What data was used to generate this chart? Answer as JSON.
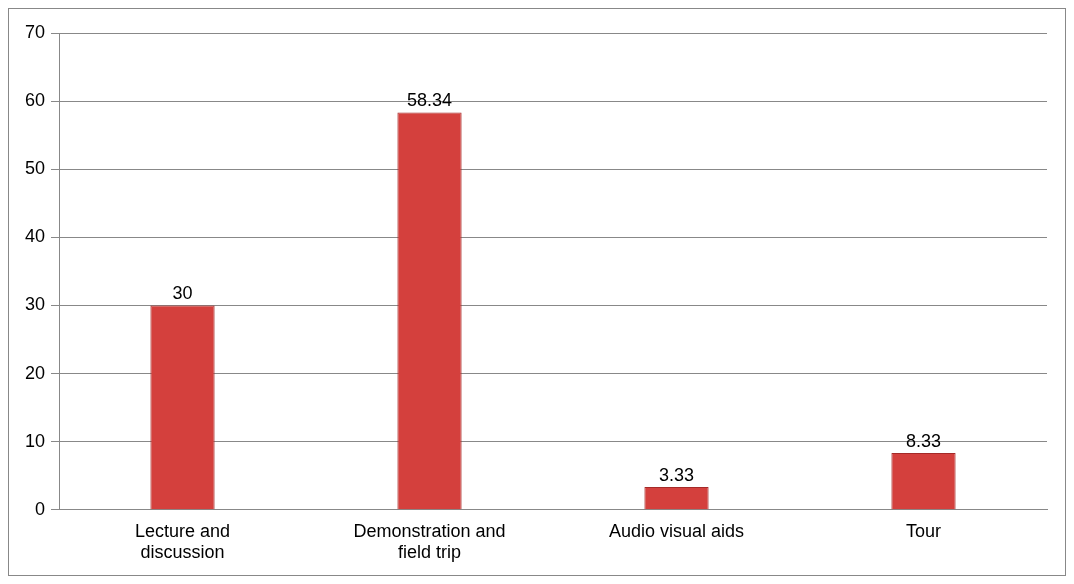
{
  "chart_data": {
    "type": "bar",
    "categories": [
      "Lecture and discussion",
      "Demonstration and field trip",
      "Audio visual aids",
      "Tour"
    ],
    "values": [
      30,
      58.34,
      3.33,
      8.33
    ],
    "color": "#d4403d",
    "ylim": [
      0,
      70
    ],
    "yticks": [
      0,
      10,
      20,
      30,
      40,
      50,
      60,
      70
    ],
    "grid": "y",
    "data_labels": true,
    "legend": false
  }
}
